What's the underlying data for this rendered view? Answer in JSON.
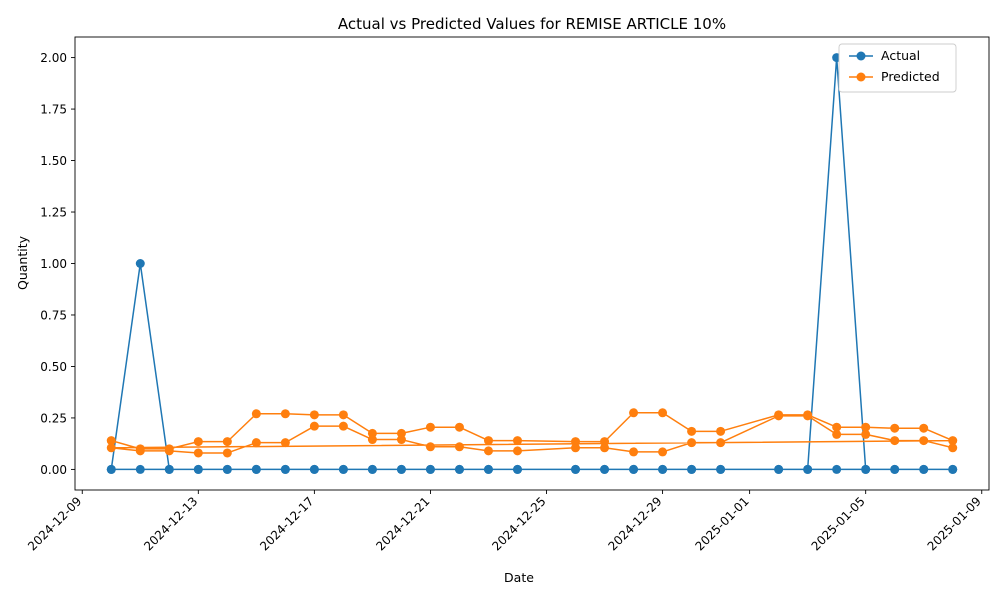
{
  "chart_data": {
    "type": "line",
    "title": "Actual vs Predicted Values for REMISE ARTICLE 10%",
    "xlabel": "Date",
    "ylabel": "Quantity",
    "ylim": [
      -0.1,
      2.1
    ],
    "xlim": [
      "2024-12-08T18:00",
      "2025-01-09T06:00"
    ],
    "x_ticks": [
      "2024-12-09",
      "2024-12-13",
      "2024-12-17",
      "2024-12-21",
      "2024-12-25",
      "2024-12-29",
      "2025-01-01",
      "2025-01-05",
      "2025-01-09"
    ],
    "y_ticks": [
      "0.00",
      "0.25",
      "0.50",
      "0.75",
      "1.00",
      "1.25",
      "1.50",
      "1.75",
      "2.00"
    ],
    "legend": {
      "position": "top-right",
      "entries": [
        "Actual",
        "Predicted"
      ]
    },
    "colors": {
      "actual": "#1f77b4",
      "predicted": "#ff7f0e",
      "axis": "#000000"
    },
    "series": [
      {
        "name": "Actual",
        "points": [
          [
            "2024-12-10",
            0
          ],
          [
            "2024-12-11",
            1
          ],
          [
            "2024-12-12",
            0
          ],
          [
            "2024-12-13",
            0
          ],
          [
            "2024-12-14",
            0
          ],
          [
            "2024-12-15",
            0
          ],
          [
            "2024-12-16",
            0
          ],
          [
            "2024-12-17",
            0
          ],
          [
            "2024-12-18",
            0
          ],
          [
            "2024-12-19",
            0
          ],
          [
            "2024-12-20",
            0
          ],
          [
            "2024-12-21",
            0
          ],
          [
            "2024-12-22",
            0
          ],
          [
            "2024-12-23",
            0
          ],
          [
            "2024-12-24",
            0
          ],
          [
            "2024-12-26",
            0
          ],
          [
            "2024-12-27",
            0
          ],
          [
            "2024-12-28",
            0
          ],
          [
            "2024-12-29",
            0
          ],
          [
            "2024-12-30",
            0
          ],
          [
            "2024-12-31",
            0
          ],
          [
            "2025-01-02",
            0
          ],
          [
            "2025-01-03",
            0
          ],
          [
            "2025-01-04",
            2
          ],
          [
            "2025-01-05",
            0
          ],
          [
            "2025-01-06",
            0
          ],
          [
            "2025-01-07",
            0
          ],
          [
            "2025-01-08",
            0
          ],
          [
            "2024-12-10",
            0
          ],
          [
            "2024-12-11",
            0
          ],
          [
            "2024-12-12",
            0
          ],
          [
            "2024-12-13",
            0
          ],
          [
            "2024-12-14",
            0
          ],
          [
            "2024-12-15",
            0
          ],
          [
            "2024-12-16",
            0
          ],
          [
            "2024-12-17",
            0
          ],
          [
            "2024-12-18",
            0
          ],
          [
            "2024-12-19",
            0
          ],
          [
            "2024-12-20",
            0
          ],
          [
            "2024-12-21",
            0
          ],
          [
            "2024-12-22",
            0
          ],
          [
            "2024-12-23",
            0
          ],
          [
            "2024-12-24",
            0
          ],
          [
            "2024-12-26",
            0
          ],
          [
            "2024-12-27",
            0
          ],
          [
            "2024-12-28",
            0
          ],
          [
            "2024-12-29",
            0
          ],
          [
            "2024-12-30",
            0
          ],
          [
            "2024-12-31",
            0
          ],
          [
            "2025-01-02",
            0
          ],
          [
            "2025-01-03",
            0
          ],
          [
            "2025-01-04",
            0
          ],
          [
            "2025-01-05",
            0
          ],
          [
            "2025-01-06",
            0
          ],
          [
            "2025-01-07",
            0
          ],
          [
            "2025-01-08",
            0
          ]
        ]
      },
      {
        "name": "Predicted",
        "points": [
          [
            "2024-12-10",
            0.14
          ],
          [
            "2024-12-11",
            0.1
          ],
          [
            "2024-12-12",
            0.1
          ],
          [
            "2024-12-13",
            0.135
          ],
          [
            "2024-12-14",
            0.135
          ],
          [
            "2024-12-15",
            0.27
          ],
          [
            "2024-12-16",
            0.27
          ],
          [
            "2024-12-17",
            0.265
          ],
          [
            "2024-12-18",
            0.265
          ],
          [
            "2024-12-19",
            0.175
          ],
          [
            "2024-12-20",
            0.175
          ],
          [
            "2024-12-21",
            0.205
          ],
          [
            "2024-12-22",
            0.205
          ],
          [
            "2024-12-23",
            0.14
          ],
          [
            "2024-12-24",
            0.14
          ],
          [
            "2024-12-26",
            0.135
          ],
          [
            "2024-12-27",
            0.135
          ],
          [
            "2024-12-28",
            0.275
          ],
          [
            "2024-12-29",
            0.275
          ],
          [
            "2024-12-30",
            0.185
          ],
          [
            "2024-12-31",
            0.185
          ],
          [
            "2025-01-02",
            0.265
          ],
          [
            "2025-01-03",
            0.265
          ],
          [
            "2025-01-04",
            0.205
          ],
          [
            "2025-01-05",
            0.205
          ],
          [
            "2025-01-06",
            0.2
          ],
          [
            "2025-01-07",
            0.2
          ],
          [
            "2025-01-08",
            0.14
          ],
          [
            "2024-12-10",
            0.105
          ],
          [
            "2024-12-11",
            0.09
          ],
          [
            "2024-12-12",
            0.09
          ],
          [
            "2024-12-13",
            0.08
          ],
          [
            "2024-12-14",
            0.08
          ],
          [
            "2024-12-15",
            0.13
          ],
          [
            "2024-12-16",
            0.13
          ],
          [
            "2024-12-17",
            0.21
          ],
          [
            "2024-12-18",
            0.21
          ],
          [
            "2024-12-19",
            0.145
          ],
          [
            "2024-12-20",
            0.145
          ],
          [
            "2024-12-21",
            0.11
          ],
          [
            "2024-12-22",
            0.11
          ],
          [
            "2024-12-23",
            0.09
          ],
          [
            "2024-12-24",
            0.09
          ],
          [
            "2024-12-26",
            0.105
          ],
          [
            "2024-12-27",
            0.105
          ],
          [
            "2024-12-28",
            0.085
          ],
          [
            "2024-12-29",
            0.085
          ],
          [
            "2024-12-30",
            0.13
          ],
          [
            "2024-12-31",
            0.13
          ],
          [
            "2025-01-02",
            0.26
          ],
          [
            "2025-01-03",
            0.26
          ],
          [
            "2025-01-04",
            0.17
          ],
          [
            "2025-01-05",
            0.17
          ],
          [
            "2025-01-06",
            0.14
          ],
          [
            "2025-01-07",
            0.14
          ],
          [
            "2025-01-08",
            0.105
          ]
        ]
      }
    ]
  }
}
